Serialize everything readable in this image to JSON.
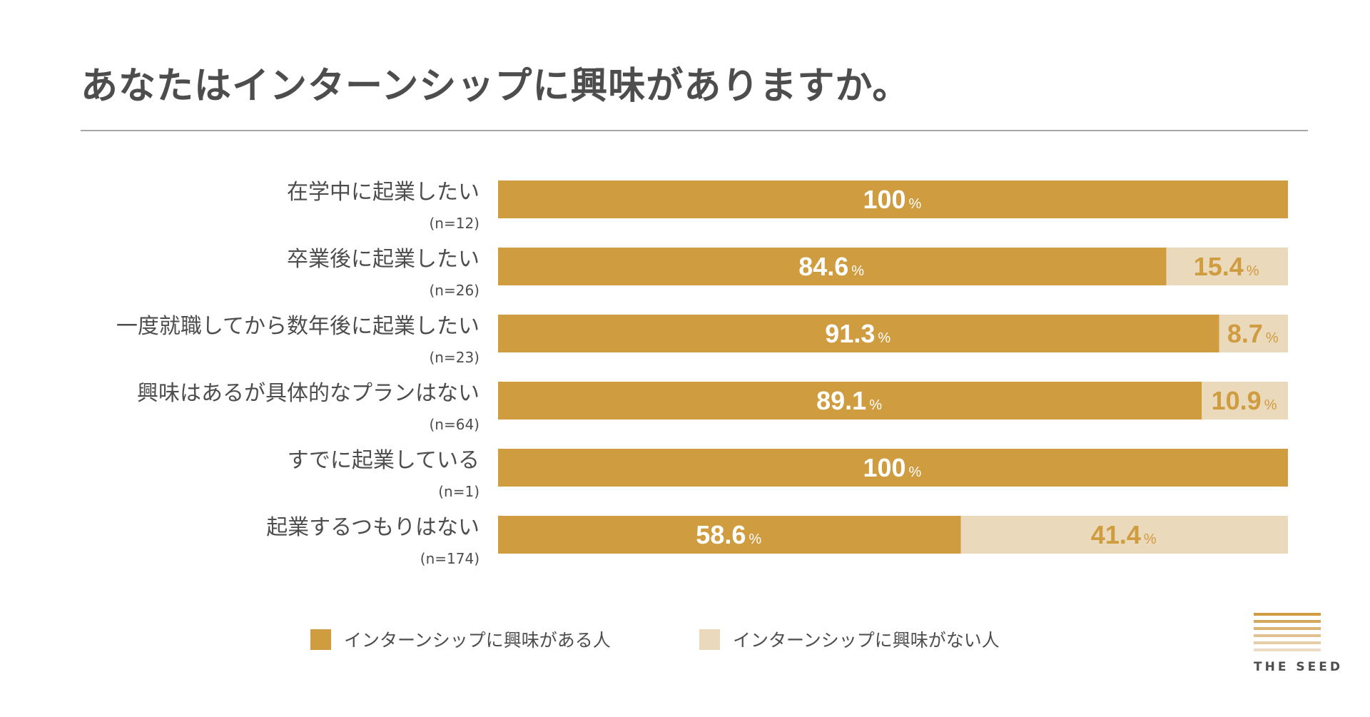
{
  "title": "あなたはインターンシップに興味がありますか。",
  "colors": {
    "interested": "#cf9c3f",
    "not_interested": "#ead9bb",
    "text": "#4d4d4d"
  },
  "chart_data": {
    "type": "bar",
    "orientation": "horizontal-stacked-100",
    "categories": [
      "在学中に起業したい",
      "卒業後に起業したい",
      "一度就職してから数年後に起業したい",
      "興味はあるが具体的なプランはない",
      "すでに起業している",
      "起業するつもりはない"
    ],
    "sample_sizes": [
      "(n=12)",
      "(n=26)",
      "(n=23)",
      "(n=64)",
      "(n=1)",
      "(n=174)"
    ],
    "series": [
      {
        "name": "インターンシップに興味がある人",
        "values": [
          100,
          84.6,
          91.3,
          89.1,
          100,
          58.6
        ]
      },
      {
        "name": "インターンシップに興味がない人",
        "values": [
          0,
          15.4,
          8.7,
          10.9,
          0,
          41.4
        ]
      }
    ],
    "value_labels": [
      [
        "100",
        "84.6",
        "91.3",
        "89.1",
        "100",
        "58.6"
      ],
      [
        "",
        "15.4",
        "8.7",
        "10.9",
        "",
        "41.4"
      ]
    ],
    "unit": "%",
    "xlim": [
      0,
      100
    ]
  },
  "legend": {
    "interested_label": "インターンシップに興味がある人",
    "not_interested_label": "インターンシップに興味がない人"
  },
  "logo": {
    "text": "THE SEED"
  }
}
